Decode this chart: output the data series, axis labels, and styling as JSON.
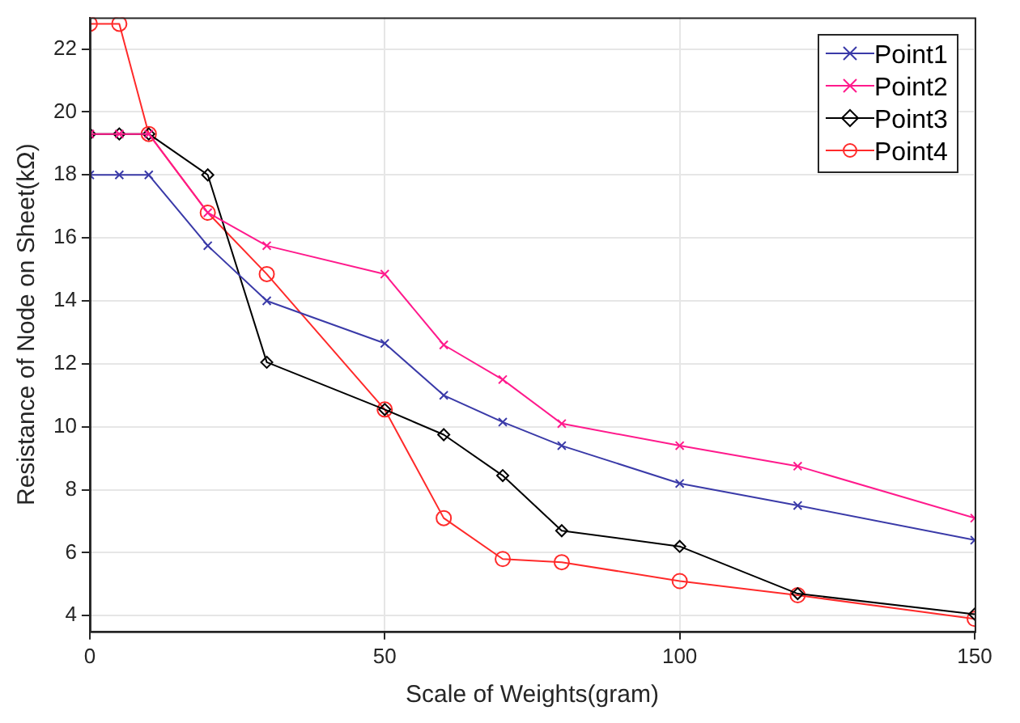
{
  "chart_data": {
    "type": "line",
    "xlabel": "Scale of Weights(gram)",
    "ylabel": "Resistance of Node on Sheet(kΩ)",
    "x": [
      0,
      5,
      10,
      20,
      30,
      50,
      60,
      70,
      80,
      100,
      120,
      150
    ],
    "series": [
      {
        "name": "Point1",
        "color": "#3a3aa8",
        "marker": "cross",
        "values": [
          18,
          18,
          18,
          15.75,
          14,
          12.65,
          11,
          10.15,
          9.4,
          8.2,
          7.5,
          6.4
        ]
      },
      {
        "name": "Point2",
        "color": "#ff1a8c",
        "marker": "cross",
        "values": [
          19.3,
          19.3,
          19.3,
          16.8,
          15.75,
          14.85,
          12.6,
          11.5,
          10.1,
          9.4,
          8.75,
          7.1
        ]
      },
      {
        "name": "Point3",
        "color": "#000000",
        "marker": "diamond",
        "values": [
          19.3,
          19.3,
          19.3,
          18,
          12.05,
          10.55,
          9.75,
          8.45,
          6.7,
          6.2,
          4.7,
          4.05
        ]
      },
      {
        "name": "Point4",
        "color": "#ff2a2a",
        "marker": "circle",
        "values": [
          22.8,
          22.8,
          19.3,
          16.8,
          14.85,
          10.55,
          7.1,
          5.8,
          5.7,
          5.1,
          4.65,
          3.9
        ]
      }
    ],
    "xlim": [
      0,
      150
    ],
    "xticks": [
      0,
      50,
      100,
      150
    ],
    "ylim": [
      3.5,
      23
    ],
    "yticks": [
      4,
      6,
      8,
      10,
      12,
      14,
      16,
      18,
      20,
      22
    ],
    "grid": true,
    "legend": "top right",
    "line_style": "solid"
  }
}
